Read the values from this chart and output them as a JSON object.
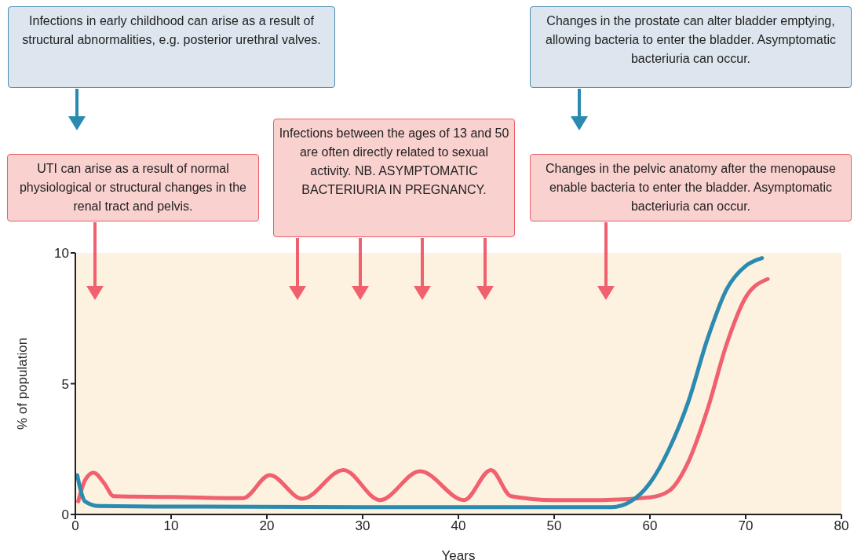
{
  "chart_data": {
    "type": "line",
    "xlabel": "Years",
    "ylabel": "% of population",
    "xlim": [
      0,
      80
    ],
    "xticks": [
      0,
      10,
      20,
      30,
      40,
      50,
      60,
      70,
      80
    ],
    "ylim": [
      0,
      10
    ],
    "yticks": [
      0,
      5,
      10
    ],
    "grid": false,
    "legend": false,
    "marker": "none",
    "line_style": "solid",
    "series": [
      {
        "color": "#f0606e",
        "x": [
          0.3,
          1,
          1.9,
          3,
          4,
          10,
          17.5,
          20.3,
          23.7,
          28,
          31.8,
          36,
          40.6,
          43.4,
          45.5,
          50,
          55,
          60,
          62,
          64,
          66,
          68,
          70,
          72.3
        ],
        "values": [
          0.5,
          1.3,
          1.6,
          1.2,
          0.7,
          0.67,
          0.62,
          1.5,
          0.6,
          1.7,
          0.55,
          1.65,
          0.55,
          1.7,
          0.7,
          0.55,
          0.55,
          0.65,
          0.9,
          2,
          4,
          6.5,
          8.3,
          9
        ]
      },
      {
        "color": "#2a8ab0",
        "x": [
          0.2,
          0.5,
          1,
          2.5,
          10,
          30,
          56,
          58,
          60,
          62,
          64,
          66,
          68,
          70,
          71.7
        ],
        "values": [
          1.5,
          1,
          0.5,
          0.32,
          0.3,
          0.28,
          0.28,
          0.5,
          1.2,
          2.5,
          4.3,
          6.7,
          8.6,
          9.5,
          9.8
        ]
      }
    ],
    "annotations": [
      "Infections in early childhood can arise as a result of structural abnormalities, e.g. posterior urethral valves.",
      "Changes in the prostate can alter bladder emptying, allowing bacteria to enter the bladder. Asymptomatic bacteriuria can occur.",
      "UTI can arise as a result of normal physiological or structural changes in the renal tract and pelvis.",
      "Infections between the ages of 13 and 50 are often directly related to sexual activity. NB. ASYMPTOMATIC BACTERIURIA IN PREGNANCY.",
      "Changes in the pelvic anatomy after the menopause enable bacteria to enter the bladder. Asymptomatic bacteriuria can occur."
    ]
  }
}
